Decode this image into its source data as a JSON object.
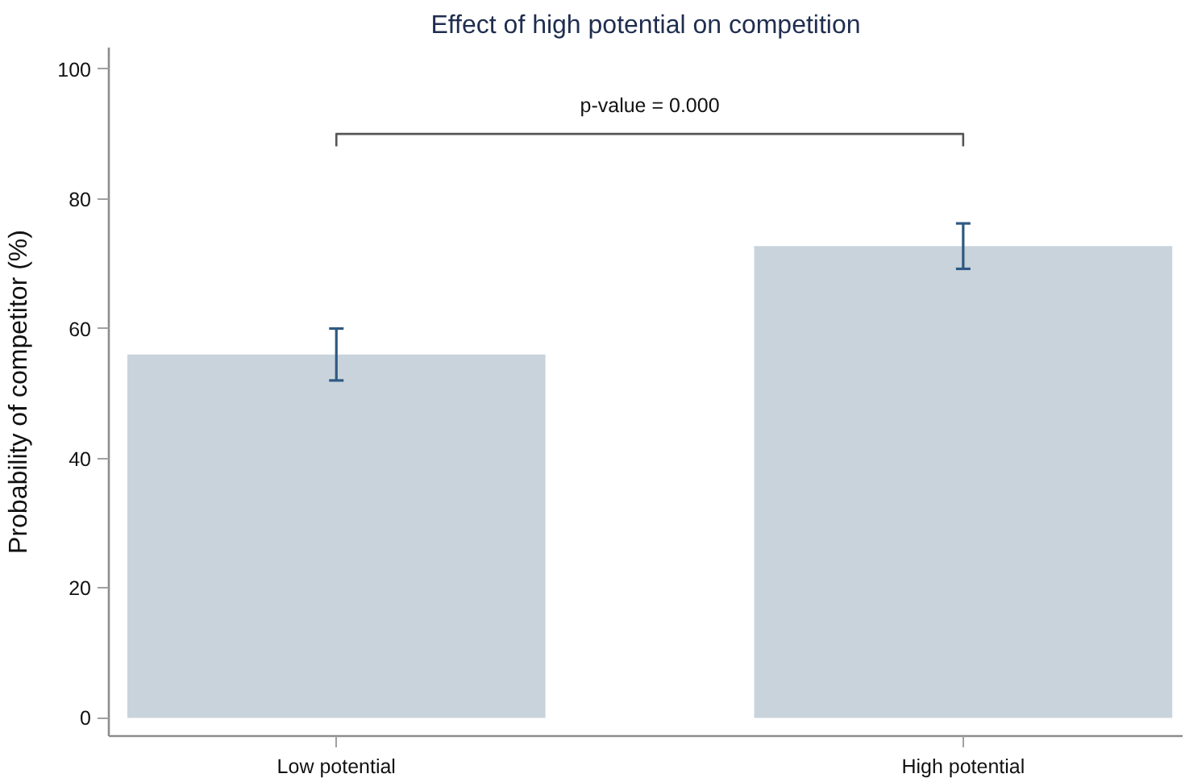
{
  "chart_data": {
    "type": "bar",
    "title": "Effect of high potential on competition",
    "ylabel": "Probability of competitor (%)",
    "categories": [
      "Low potential",
      "High potential"
    ],
    "values": [
      56,
      72.7
    ],
    "errors": [
      4,
      3.5
    ],
    "color": "#c9d3dc",
    "ylim": [
      -2.8,
      103.3
    ],
    "yticks": [
      0,
      20,
      40,
      60,
      80,
      100
    ],
    "annotations": [
      "p-value = 0.000"
    ]
  }
}
